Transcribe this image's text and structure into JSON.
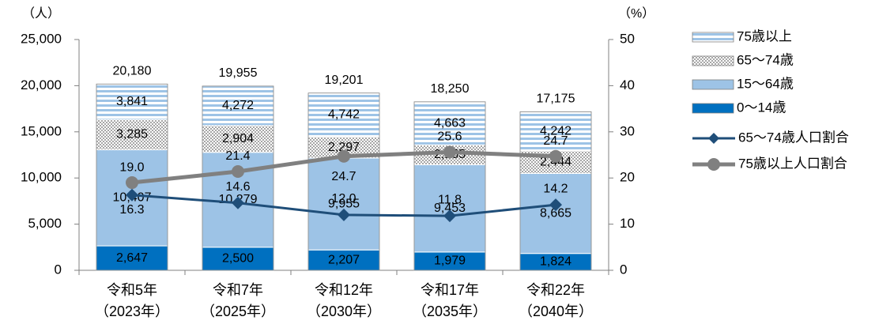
{
  "chart_data": {
    "type": "stacked-bar-line",
    "y_unit": "（人）",
    "y2_unit": "（%）",
    "categories": [
      [
        "令和5年",
        "（2023年）"
      ],
      [
        "令和7年",
        "（2025年）"
      ],
      [
        "令和12年",
        "（2030年）"
      ],
      [
        "令和17年",
        "（2035年）"
      ],
      [
        "令和22年",
        "（2040年）"
      ]
    ],
    "ylim": [
      0,
      25000
    ],
    "yticks": [
      0,
      {
        "value": 5000,
        "label": "5,000"
      },
      {
        "value": 10000,
        "label": "10,000"
      },
      {
        "value": 15000,
        "label": "15,000"
      },
      {
        "value": 20000,
        "label": "20,000"
      },
      {
        "value": 25000,
        "label": "25,000"
      }
    ],
    "y2lim": [
      0,
      50
    ],
    "y2ticks": [
      0,
      10,
      20,
      30,
      40,
      50
    ],
    "series": [
      {
        "name": "0〜14歳",
        "color": "#0070c0",
        "values": [
          2647,
          2500,
          2207,
          1979,
          1824
        ],
        "value_labels": [
          "2,647",
          "2,500",
          "2,207",
          "1,979",
          "1,824"
        ]
      },
      {
        "name": "15〜64歳",
        "color": "#9dc3e6",
        "values": [
          10407,
          10279,
          9955,
          9453,
          8665
        ],
        "value_labels": [
          "10,407",
          "10,279",
          "9,955",
          "9,453",
          "8,665"
        ]
      },
      {
        "name": "65〜74歳",
        "color": "#bfbfbf",
        "pattern": "dots",
        "values": [
          3285,
          2904,
          2297,
          2155,
          2444
        ],
        "value_labels": [
          "3,285",
          "2,904",
          "2,297",
          "2,155",
          "2,444"
        ]
      },
      {
        "name": "75歳以上",
        "color": "#9dc3e6",
        "pattern": "stripes",
        "values": [
          3841,
          4272,
          4742,
          4663,
          4242
        ],
        "value_labels": [
          "3,841",
          "4,272",
          "4,742",
          "4,663",
          "4,242"
        ]
      },
      {
        "name": "65〜74歳人口割合",
        "type": "line",
        "axis": "y2",
        "marker": "diamond",
        "color": "#1f4e79",
        "values": [
          16.3,
          14.6,
          12.0,
          11.8,
          14.2
        ],
        "value_labels": [
          "16.3",
          "14.6",
          "12.0",
          "11.8",
          "14.2"
        ]
      },
      {
        "name": "75歳以上人口割合",
        "type": "line",
        "axis": "y2",
        "marker": "circle",
        "color": "#808080",
        "values": [
          19.0,
          21.4,
          24.7,
          25.6,
          24.7
        ],
        "value_labels": [
          "19.0",
          "21.4",
          "24.7",
          "25.6",
          "24.7"
        ]
      }
    ],
    "totals": [
      20180,
      19955,
      19201,
      18250,
      17175
    ],
    "total_labels": [
      "20,180",
      "19,955",
      "19,201",
      "18,250",
      "17,175"
    ]
  }
}
